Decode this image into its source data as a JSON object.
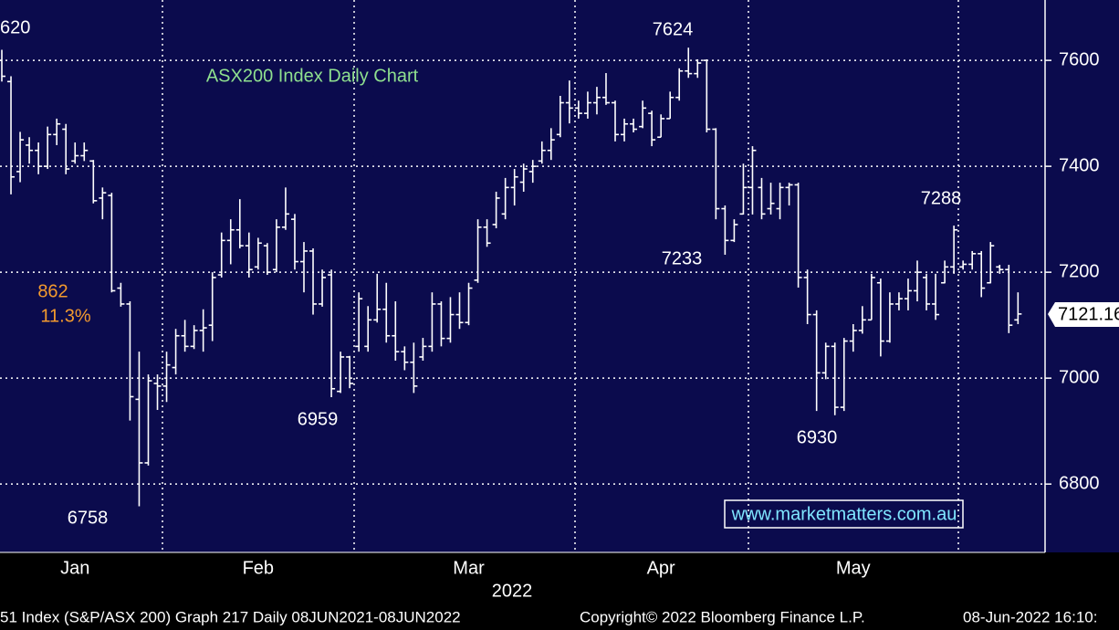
{
  "chart_data": {
    "type": "ohlc",
    "title": "ASX200 Index Daily Chart",
    "color": "#ffffff",
    "background": "#0b0b4d",
    "grid": true,
    "x_label": "2022",
    "website": "www.marketmatters.com.au",
    "ylim": [
      6671,
      7714
    ],
    "yticks": [
      6800,
      7000,
      7200,
      7400,
      7600
    ],
    "categories": [
      null,
      null,
      null,
      null,
      null,
      null,
      null,
      null,
      "Jan",
      null,
      null,
      null,
      null,
      null,
      null,
      null,
      null,
      null,
      null,
      null,
      null,
      null,
      null,
      null,
      null,
      null,
      null,
      null,
      "Feb",
      null,
      null,
      null,
      null,
      null,
      null,
      null,
      null,
      null,
      null,
      null,
      null,
      null,
      null,
      null,
      null,
      null,
      null,
      null,
      null,
      null,
      null,
      "Mar",
      null,
      null,
      null,
      null,
      null,
      null,
      null,
      null,
      null,
      null,
      null,
      null,
      null,
      null,
      null,
      null,
      null,
      null,
      null,
      null,
      "Apr",
      null,
      null,
      null,
      null,
      null,
      null,
      null,
      null,
      null,
      null,
      null,
      null,
      null,
      null,
      null,
      null,
      null,
      null,
      null,
      null,
      "May",
      null,
      null,
      null,
      null,
      null,
      null,
      null,
      null,
      null,
      null,
      null,
      null,
      null,
      null,
      null,
      null,
      null,
      null
    ],
    "open": [
      7600,
      7560,
      7390,
      7440,
      7430,
      7400,
      7460,
      7470,
      7410,
      7420,
      7410,
      7340,
      7345,
      7170,
      7140,
      6960,
      6840,
      6990,
      6985,
      7020,
      7080,
      7060,
      7090,
      7100,
      7195,
      7260,
      7280,
      7250,
      7210,
      7250,
      7205,
      7285,
      7300,
      7220,
      7240,
      7140,
      7195,
      6975,
      7040,
      7060,
      7060,
      7110,
      7130,
      7080,
      7050,
      7030,
      7040,
      7060,
      7140,
      7075,
      7120,
      7105,
      7185,
      7285,
      7290,
      7310,
      7360,
      7370,
      7390,
      7410,
      7430,
      7460,
      7520,
      7510,
      7500,
      7520,
      7530,
      7520,
      7460,
      7480,
      7475,
      7500,
      7455,
      7490,
      7530,
      7580,
      7575,
      7600,
      7470,
      7320,
      7260,
      7310,
      7360,
      7360,
      7320,
      7320,
      7360,
      7365,
      7190,
      7120,
      7010,
      7060,
      6945,
      7070,
      7090,
      7110,
      7180,
      7070,
      7140,
      7150,
      7165,
      7190,
      7140,
      7180,
      7210,
      7210,
      7215,
      7235,
      7180,
      7210,
      7205,
      7110
    ],
    "high": [
      7620,
      7570,
      7465,
      7455,
      7445,
      7475,
      7490,
      7480,
      7445,
      7445,
      7412,
      7360,
      7350,
      7180,
      7145,
      7050,
      7007,
      7007,
      7050,
      7093,
      7110,
      7100,
      7130,
      7200,
      7275,
      7300,
      7338,
      7275,
      7265,
      7255,
      7300,
      7360,
      7310,
      7257,
      7245,
      7205,
      7205,
      7050,
      7042,
      7162,
      7136,
      7197,
      7180,
      7145,
      7060,
      7067,
      7076,
      7162,
      7145,
      7153,
      7162,
      7180,
      7300,
      7300,
      7352,
      7378,
      7395,
      7405,
      7412,
      7447,
      7472,
      7533,
      7562,
      7524,
      7541,
      7550,
      7576,
      7524,
      7490,
      7490,
      7524,
      7505,
      7498,
      7541,
      7585,
      7624,
      7602,
      7602,
      7472,
      7326,
      7300,
      7405,
      7438,
      7378,
      7369,
      7369,
      7369,
      7369,
      7205,
      7128,
      7067,
      7067,
      7076,
      7102,
      7136,
      7197,
      7188,
      7162,
      7162,
      7188,
      7222,
      7197,
      7197,
      7222,
      7288,
      7222,
      7240,
      7240,
      7257,
      7214,
      7214,
      7162
    ],
    "low": [
      7560,
      7347,
      7370,
      7405,
      7385,
      7395,
      7440,
      7385,
      7405,
      7410,
      7330,
      7300,
      7162,
      7135,
      6920,
      6758,
      6835,
      6940,
      6955,
      7007,
      7050,
      7055,
      7050,
      7070,
      7190,
      7215,
      7245,
      7190,
      7205,
      7195,
      7200,
      7280,
      7205,
      7162,
      7120,
      7135,
      6964,
      6972,
      6981,
      7050,
      7050,
      7105,
      7067,
      7033,
      7015,
      6972,
      7033,
      7050,
      7060,
      7067,
      7093,
      7100,
      7180,
      7248,
      7283,
      7300,
      7326,
      7352,
      7369,
      7405,
      7412,
      7455,
      7481,
      7490,
      7490,
      7498,
      7516,
      7447,
      7447,
      7464,
      7472,
      7438,
      7455,
      7490,
      7524,
      7567,
      7567,
      7464,
      7300,
      7233,
      7257,
      7309,
      7309,
      7300,
      7309,
      7300,
      7326,
      7171,
      7102,
      6938,
      6998,
      6930,
      6938,
      7050,
      7084,
      7110,
      7041,
      7067,
      7128,
      7128,
      7145,
      7128,
      7110,
      7179,
      7197,
      7205,
      7205,
      7153,
      7179,
      7197,
      7085,
      7102
    ],
    "close": [
      7570,
      7380,
      7450,
      7430,
      7400,
      7460,
      7480,
      7395,
      7420,
      7430,
      7335,
      7350,
      7165,
      7140,
      6965,
      6840,
      6995,
      6985,
      7025,
      7080,
      7060,
      7090,
      7095,
      7190,
      7260,
      7280,
      7250,
      7205,
      7255,
      7200,
      7285,
      7310,
      7220,
      7240,
      7140,
      7190,
      6980,
      7040,
      6990,
      7150,
      7110,
      7130,
      7080,
      7050,
      7030,
      6985,
      7060,
      7140,
      7075,
      7120,
      7105,
      7170,
      7285,
      7255,
      7340,
      7360,
      7380,
      7395,
      7400,
      7430,
      7450,
      7520,
      7510,
      7500,
      7520,
      7530,
      7520,
      7460,
      7480,
      7470,
      7510,
      7450,
      7490,
      7530,
      7580,
      7575,
      7595,
      7470,
      7320,
      7260,
      7290,
      7360,
      7430,
      7310,
      7330,
      7360,
      7365,
      7190,
      7120,
      7010,
      7060,
      6945,
      7070,
      7090,
      7110,
      7190,
      7070,
      7140,
      7150,
      7165,
      7200,
      7140,
      7120,
      7210,
      7280,
      7215,
      7235,
      7170,
      7250,
      7205,
      7100,
      7121.16
    ],
    "annotations": [
      "620",
      "7624",
      "7233",
      "6930",
      "7288",
      "6758",
      "6959",
      "862",
      "11.3%"
    ],
    "annotation_colors": [
      "#ffffff",
      "#ffffff",
      "#ffffff",
      "#ffffff",
      "#ffffff",
      "#ffffff",
      "#ffffff",
      "#f39a2e",
      "#f39a2e"
    ],
    "last_price": "7121.16"
  },
  "footer": {
    "left": "51 Index (S&P/ASX 200) Graph 217  Daily 08JUN2021-08JUN2022",
    "center": "Copyright© 2022 Bloomberg Finance L.P.",
    "right": "08-Jun-2022 16:10:"
  }
}
